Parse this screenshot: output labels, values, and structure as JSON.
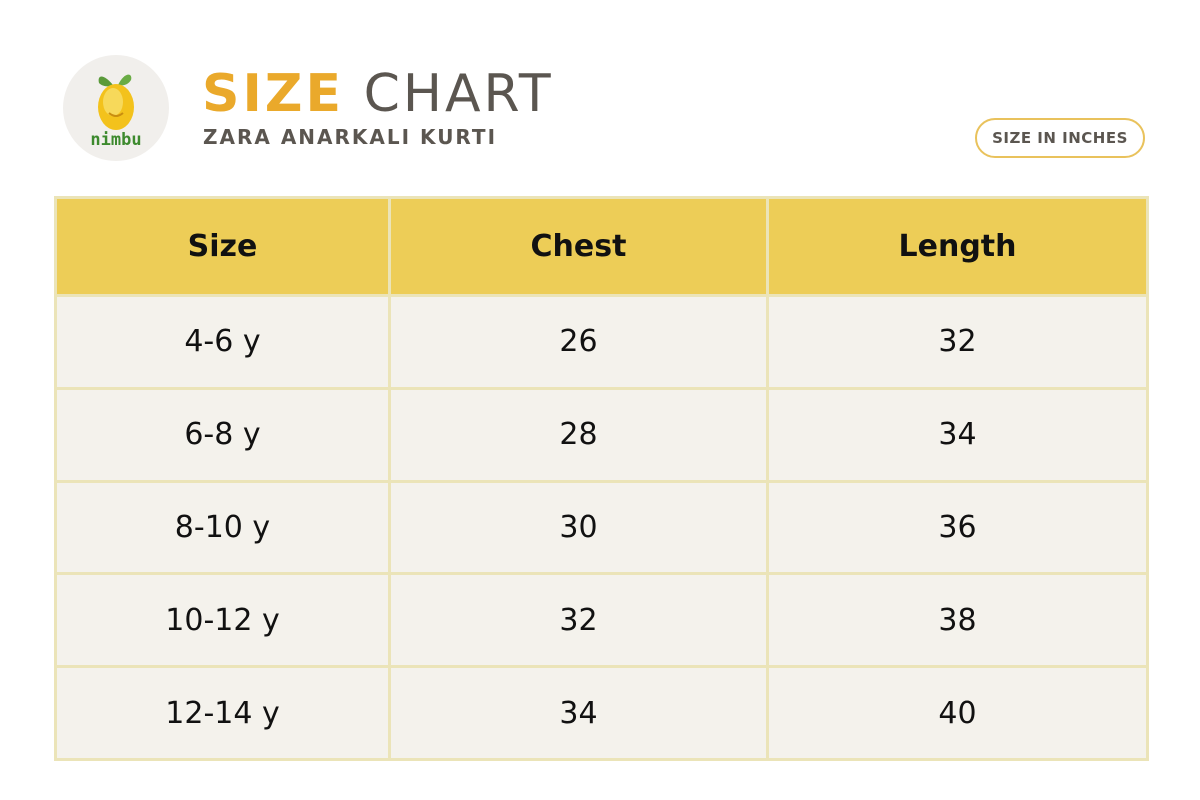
{
  "header": {
    "logo_text": "nimbu",
    "title_accent": "SIZE",
    "title_rest": "CHART",
    "subtitle": "ZARA ANARKALI KURTI",
    "badge": "SIZE IN INCHES"
  },
  "table": {
    "columns": [
      "Size",
      "Chest",
      "Length"
    ],
    "rows": [
      [
        "4-6 y",
        26,
        32
      ],
      [
        "6-8 y",
        28,
        34
      ],
      [
        "8-10 y",
        30,
        36
      ],
      [
        "10-12 y",
        32,
        38
      ],
      [
        "12-14 y",
        34,
        40
      ]
    ]
  }
}
